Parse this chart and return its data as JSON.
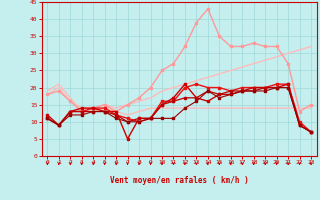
{
  "xlabel": "Vent moyen/en rafales ( km/h )",
  "xlim": [
    -0.5,
    23.5
  ],
  "ylim": [
    0,
    45
  ],
  "yticks": [
    0,
    5,
    10,
    15,
    20,
    25,
    30,
    35,
    40,
    45
  ],
  "xticks": [
    0,
    1,
    2,
    3,
    4,
    5,
    6,
    7,
    8,
    9,
    10,
    11,
    12,
    13,
    14,
    15,
    16,
    17,
    18,
    19,
    20,
    21,
    22,
    23
  ],
  "background_color": "#c5eeee",
  "grid_color": "#a0d8d8",
  "lines": [
    {
      "x": [
        0,
        1,
        2,
        3,
        4,
        5,
        6,
        7,
        8,
        9,
        10,
        11,
        12,
        13,
        14,
        15,
        16,
        17,
        18,
        19,
        20,
        21,
        22,
        23
      ],
      "y": [
        19,
        21,
        17,
        13,
        13,
        14,
        13,
        12,
        13,
        14,
        14,
        14,
        14,
        14,
        14,
        14,
        14,
        14,
        14,
        14,
        14,
        14,
        14,
        14
      ],
      "color": "#ffbbbb",
      "linewidth": 1.0,
      "marker": null
    },
    {
      "x": [
        0,
        1,
        2,
        3,
        4,
        5,
        6,
        7,
        8,
        9,
        10,
        11,
        12,
        13,
        14,
        15,
        16,
        17,
        18,
        19,
        20,
        21,
        22,
        23
      ],
      "y": [
        18,
        20,
        16,
        14,
        14,
        15,
        14,
        15,
        16,
        17,
        19,
        20,
        21,
        22,
        23,
        24,
        25,
        26,
        27,
        28,
        29,
        30,
        31,
        32
      ],
      "color": "#ffbbbb",
      "linewidth": 1.0,
      "marker": null
    },
    {
      "x": [
        0,
        1,
        2,
        3,
        4,
        5,
        6,
        7,
        8,
        9,
        10,
        11,
        12,
        13,
        14,
        15,
        16,
        17,
        18,
        19,
        20,
        21,
        22,
        23
      ],
      "y": [
        18,
        19,
        16,
        13,
        14,
        15,
        13,
        15,
        17,
        20,
        25,
        27,
        32,
        39,
        43,
        35,
        32,
        32,
        33,
        32,
        32,
        27,
        13,
        15
      ],
      "color": "#ff9999",
      "linewidth": 1.0,
      "marker": "s",
      "markersize": 1.8
    },
    {
      "x": [
        0,
        1,
        2,
        3,
        4,
        5,
        6,
        7,
        8,
        9,
        10,
        11,
        12,
        13,
        14,
        15,
        16,
        17,
        18,
        19,
        20,
        21,
        22,
        23
      ],
      "y": [
        11,
        9,
        13,
        13,
        14,
        14,
        12,
        11,
        10,
        11,
        16,
        16,
        20,
        21,
        20,
        20,
        19,
        20,
        20,
        20,
        21,
        21,
        10,
        7
      ],
      "color": "#ee1111",
      "linewidth": 1.0,
      "marker": "s",
      "markersize": 1.8
    },
    {
      "x": [
        0,
        1,
        2,
        3,
        4,
        5,
        6,
        7,
        8,
        9,
        10,
        11,
        12,
        13,
        14,
        15,
        16,
        17,
        18,
        19,
        20,
        21,
        22,
        23
      ],
      "y": [
        12,
        9,
        13,
        14,
        14,
        13,
        13,
        5,
        11,
        11,
        15,
        17,
        21,
        17,
        16,
        18,
        18,
        19,
        20,
        20,
        20,
        21,
        9,
        7
      ],
      "color": "#cc0000",
      "linewidth": 1.0,
      "marker": "s",
      "markersize": 1.8
    },
    {
      "x": [
        0,
        1,
        2,
        3,
        4,
        5,
        6,
        7,
        8,
        9,
        10,
        11,
        12,
        13,
        14,
        15,
        16,
        17,
        18,
        19,
        20,
        21,
        22,
        23
      ],
      "y": [
        11,
        9,
        13,
        13,
        13,
        13,
        12,
        10,
        11,
        11,
        15,
        16,
        17,
        17,
        19,
        18,
        19,
        19,
        19,
        20,
        20,
        20,
        9,
        7
      ],
      "color": "#bb0000",
      "linewidth": 0.9,
      "marker": "s",
      "markersize": 1.5
    },
    {
      "x": [
        0,
        1,
        2,
        3,
        4,
        5,
        6,
        7,
        8,
        9,
        10,
        11,
        12,
        13,
        14,
        15,
        16,
        17,
        18,
        19,
        20,
        21,
        22,
        23
      ],
      "y": [
        11,
        9,
        12,
        12,
        13,
        13,
        11,
        10,
        10,
        11,
        11,
        11,
        14,
        16,
        19,
        17,
        18,
        19,
        19,
        19,
        20,
        20,
        9,
        7
      ],
      "color": "#990000",
      "linewidth": 0.8,
      "marker": "s",
      "markersize": 1.5
    }
  ],
  "tick_color": "#cc0000",
  "label_color": "#cc0000",
  "spine_color": "#cc0000"
}
